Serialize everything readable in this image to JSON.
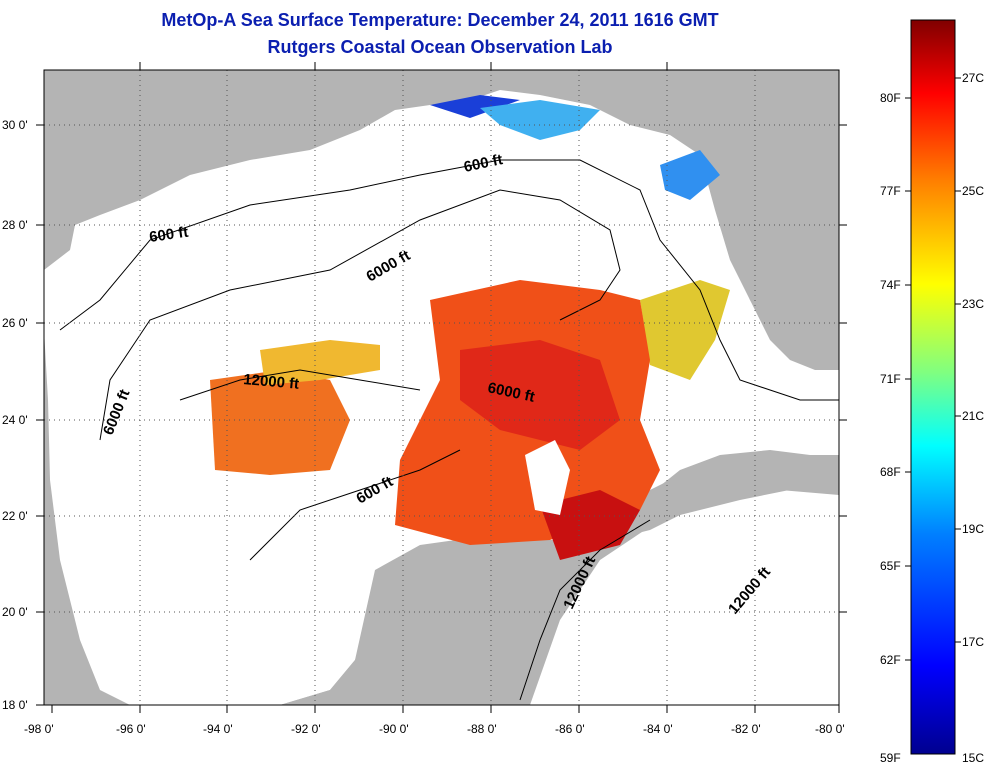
{
  "header": {
    "title": "MetOp-A Sea Surface Temperature:  December 24, 2011 1616 GMT",
    "subtitle": "Rutgers Coastal Ocean Observation Lab"
  },
  "map": {
    "lat_labels": [
      "30 0'",
      "28 0'",
      "26 0'",
      "24 0'",
      "22 0'",
      "20 0'",
      "18 0'"
    ],
    "lon_labels": [
      "-98 0'",
      "-96 0'",
      "-94 0'",
      "-92 0'",
      "-90 0'",
      "-88 0'",
      "-86 0'",
      "-84 0'",
      "-82 0'",
      "-80 0'"
    ],
    "lat_range": [
      18,
      31
    ],
    "lon_range": [
      -98,
      -80
    ],
    "land_color": "#b4b4b4",
    "water_color": "#ffffff",
    "contour_labels": [
      "600 ft",
      "600 ft",
      "6000 ft",
      "6000 ft",
      "12000 ft",
      "6000 ft",
      "600 ft",
      "12000 ft",
      "12000 ft"
    ]
  },
  "colorbar": {
    "fahrenheit_labels": [
      "80F",
      "77F",
      "74F",
      "71F",
      "68F",
      "65F",
      "62F",
      "59F"
    ],
    "celsius_labels": [
      "27C",
      "25C",
      "23C",
      "21C",
      "19C",
      "17C",
      "15C"
    ],
    "range_c": [
      15,
      28
    ],
    "colors": [
      "#00008f",
      "#0000ff",
      "#0080ff",
      "#00ffff",
      "#80ff80",
      "#ffff00",
      "#ff8000",
      "#ff0000",
      "#800000"
    ]
  }
}
